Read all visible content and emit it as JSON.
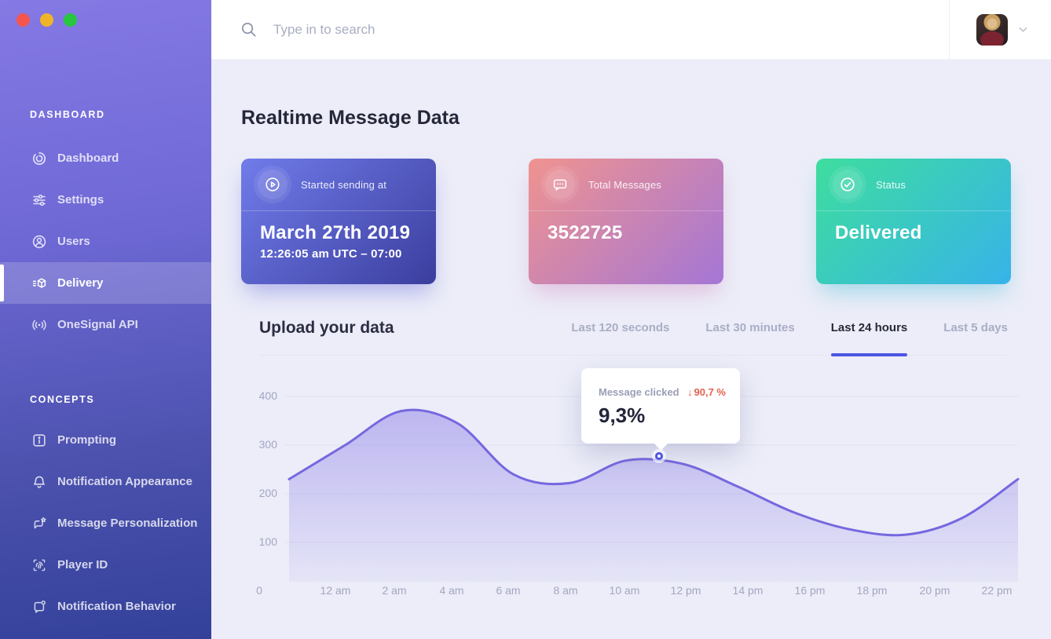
{
  "window": {
    "traffic_lights": [
      {
        "name": "close",
        "color": "#f4564d"
      },
      {
        "name": "minimize",
        "color": "#f0b429"
      },
      {
        "name": "zoom",
        "color": "#27c840"
      }
    ]
  },
  "sidebar": {
    "sections": [
      {
        "title": "DASHBOARD",
        "items": [
          {
            "label": "Dashboard",
            "icon": "onesignal-logo-icon",
            "active": false
          },
          {
            "label": "Settings",
            "icon": "sliders-icon",
            "active": false
          },
          {
            "label": "Users",
            "icon": "user-circle-icon",
            "active": false
          },
          {
            "label": "Delivery",
            "icon": "package-list-icon",
            "active": true
          },
          {
            "label": "OneSignal API",
            "icon": "broadcast-icon",
            "active": false
          }
        ]
      },
      {
        "title": "CONCEPTS",
        "items": [
          {
            "label": "Prompting",
            "icon": "info-square-icon",
            "active": false
          },
          {
            "label": "Notification Appearance",
            "icon": "bell-icon",
            "active": false
          },
          {
            "label": "Message Personalization",
            "icon": "chat-star-icon",
            "active": false
          },
          {
            "label": "Player ID",
            "icon": "fingerprint-icon",
            "active": false
          },
          {
            "label": "Notification Behavior",
            "icon": "chat-badge-icon",
            "active": false
          }
        ]
      }
    ]
  },
  "topbar": {
    "search_placeholder": "Type in to search"
  },
  "main": {
    "title": "Realtime Message Data",
    "cards": [
      {
        "label": "Started sending at",
        "value": "March 27th 2019",
        "subvalue": "12:26:05 am UTC – 07:00",
        "icon": "play-circle-icon",
        "gradient_from": "#717cea",
        "gradient_to": "#3b3e9e",
        "shadow_color": "rgba(87,93,214,0.40)"
      },
      {
        "label": "Total Messages",
        "value": "3522725",
        "subvalue": "",
        "icon": "message-dots-icon",
        "gradient_from": "#f0938f",
        "gradient_to": "#a476d6",
        "shadow_color": "rgba(205,125,185,0.40)"
      },
      {
        "label": "Status",
        "value": "Delivered",
        "subvalue": "",
        "icon": "check-circle-icon",
        "gradient_from": "#3edd9e",
        "gradient_to": "#37b3e9",
        "shadow_color": "rgba(56,185,210,0.40)"
      }
    ],
    "upload_section": {
      "title": "Upload your data",
      "tabs": [
        {
          "label": "Last 120 seconds",
          "active": false
        },
        {
          "label": "Last 30 minutes",
          "active": false
        },
        {
          "label": "Last 24 hours",
          "active": true
        },
        {
          "label": "Last 5 days",
          "active": false
        }
      ]
    },
    "tooltip": {
      "label": "Message clicked",
      "delta_arrow": "↓",
      "delta": "90,7 %",
      "value": "9,3%"
    }
  },
  "chart_data": {
    "type": "area",
    "title": "",
    "categories": [
      "0",
      "12 am",
      "2 am",
      "4 am",
      "6 am",
      "8 am",
      "10 am",
      "12 pm",
      "14 pm",
      "16 pm",
      "18 pm",
      "20 pm",
      "22 pm"
    ],
    "series": [
      {
        "name": "Message clicked",
        "values": [
          230,
          300,
          370,
          345,
          240,
          222,
          268,
          262,
          215,
          162,
          127,
          116,
          150
        ]
      }
    ],
    "right_edge_value": 230,
    "yticks": [
      100,
      200,
      300,
      400
    ],
    "ylim": [
      0,
      435
    ],
    "grid": true,
    "legend": "none",
    "line_color": "#7668df",
    "fill_color": "#8d7fe8",
    "grid_color": "#dfe1ef",
    "accent_color": "#4b55e2",
    "marker": {
      "between": [
        "10 am",
        "12 pm"
      ],
      "value": 275,
      "tooltip": "Message clicked 9,3% (↓ 90,7 %)"
    }
  }
}
